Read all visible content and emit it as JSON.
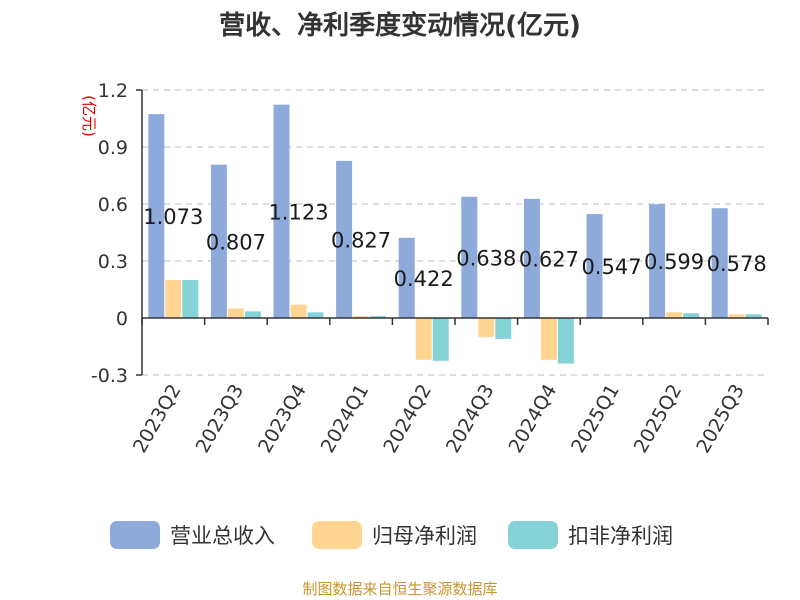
{
  "chart_data": {
    "type": "bar",
    "title": "营收、净利季度变动情况(亿元)",
    "unit": "(亿元)",
    "categories": [
      "2023Q2",
      "2023Q3",
      "2023Q4",
      "2024Q1",
      "2024Q2",
      "2024Q3",
      "2024Q4",
      "2025Q1",
      "2025Q2",
      "2025Q3"
    ],
    "series": [
      {
        "name": "营业总收入",
        "color": "#8eaadb",
        "values": [
          1.073,
          0.807,
          1.123,
          0.827,
          0.422,
          0.638,
          0.627,
          0.547,
          0.599,
          0.578
        ]
      },
      {
        "name": "归母净利润",
        "color": "#ffd591",
        "values": [
          0.2,
          0.05,
          0.07,
          0.01,
          -0.22,
          -0.1,
          -0.22,
          0.003,
          0.03,
          0.02
        ]
      },
      {
        "name": "扣非净利润",
        "color": "#86d3d7",
        "values": [
          0.2,
          0.035,
          0.03,
          0.01,
          -0.225,
          -0.11,
          -0.24,
          0.003,
          0.025,
          0.02
        ]
      }
    ],
    "data_labels": [
      "1.073",
      "0.807",
      "1.123",
      "0.827",
      "0.422",
      "0.638",
      "0.627",
      "0.547",
      "0.599",
      "0.578"
    ],
    "y_ticks": [
      "-0.3",
      "0",
      "0.3",
      "0.6",
      "0.9",
      "1.2"
    ],
    "ylim": [
      -0.3,
      1.2
    ],
    "grid": true,
    "legend_position": "bottom"
  },
  "source": "制图数据来自恒生聚源数据库"
}
